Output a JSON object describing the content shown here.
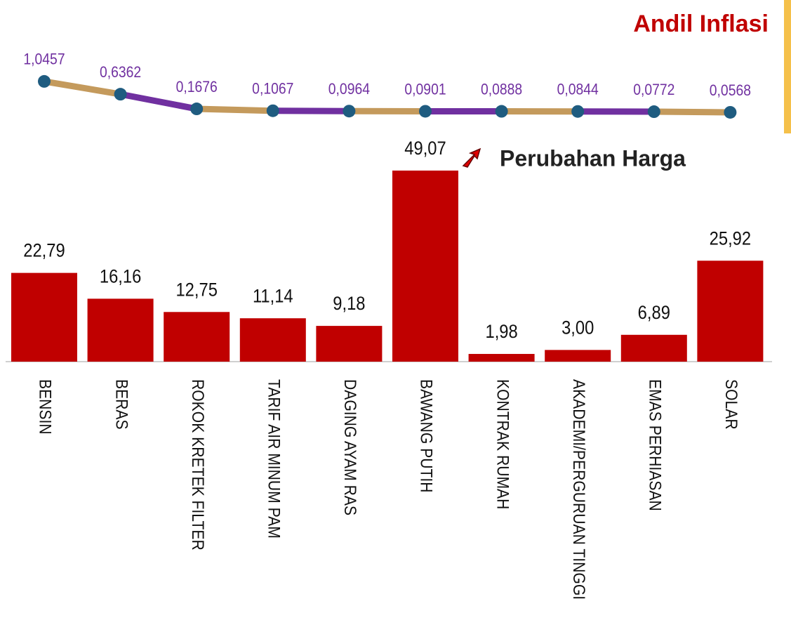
{
  "chart_data": {
    "type": "bar",
    "categories": [
      "BENSIN",
      "BERAS",
      "ROKOK KRETEK FILTER",
      "TARIF AIR MINUM PAM",
      "DAGING AYAM RAS",
      "BAWANG PUTIH",
      "KONTRAK RUMAH",
      "AKADEMI/PERGURUAN TINGGI",
      "EMAS PERHIASAN",
      "SOLAR"
    ],
    "series": [
      {
        "name": "Perubahan Harga",
        "type": "bar",
        "color": "#c00000",
        "values": [
          22.79,
          16.16,
          12.75,
          11.14,
          9.18,
          49.07,
          1.98,
          3.0,
          6.89,
          25.92
        ],
        "value_labels": [
          "22,79",
          "16,16",
          "12,75",
          "11,14",
          "9,18",
          "49,07",
          "1,98",
          "3,00",
          "6,89",
          "25,92"
        ]
      },
      {
        "name": "Andil Inflasi",
        "type": "line",
        "axis": "y2",
        "color": [
          "#c49a5c",
          "#7030a0"
        ],
        "marker_color": "#1f5c80",
        "label_color": "#7030a0",
        "values": [
          1.0457,
          0.6362,
          0.1676,
          0.1067,
          0.0964,
          0.0901,
          0.0888,
          0.0844,
          0.0772,
          0.0568
        ],
        "value_labels": [
          "1,0457",
          "0,6362",
          "0,1676",
          "0,1067",
          "0,0964",
          "0,0901",
          "0,0888",
          "0,0844",
          "0,0772",
          "0,0568"
        ]
      }
    ],
    "ylim": [
      0,
      55
    ],
    "y2lim": [
      0,
      1.2
    ]
  }
}
